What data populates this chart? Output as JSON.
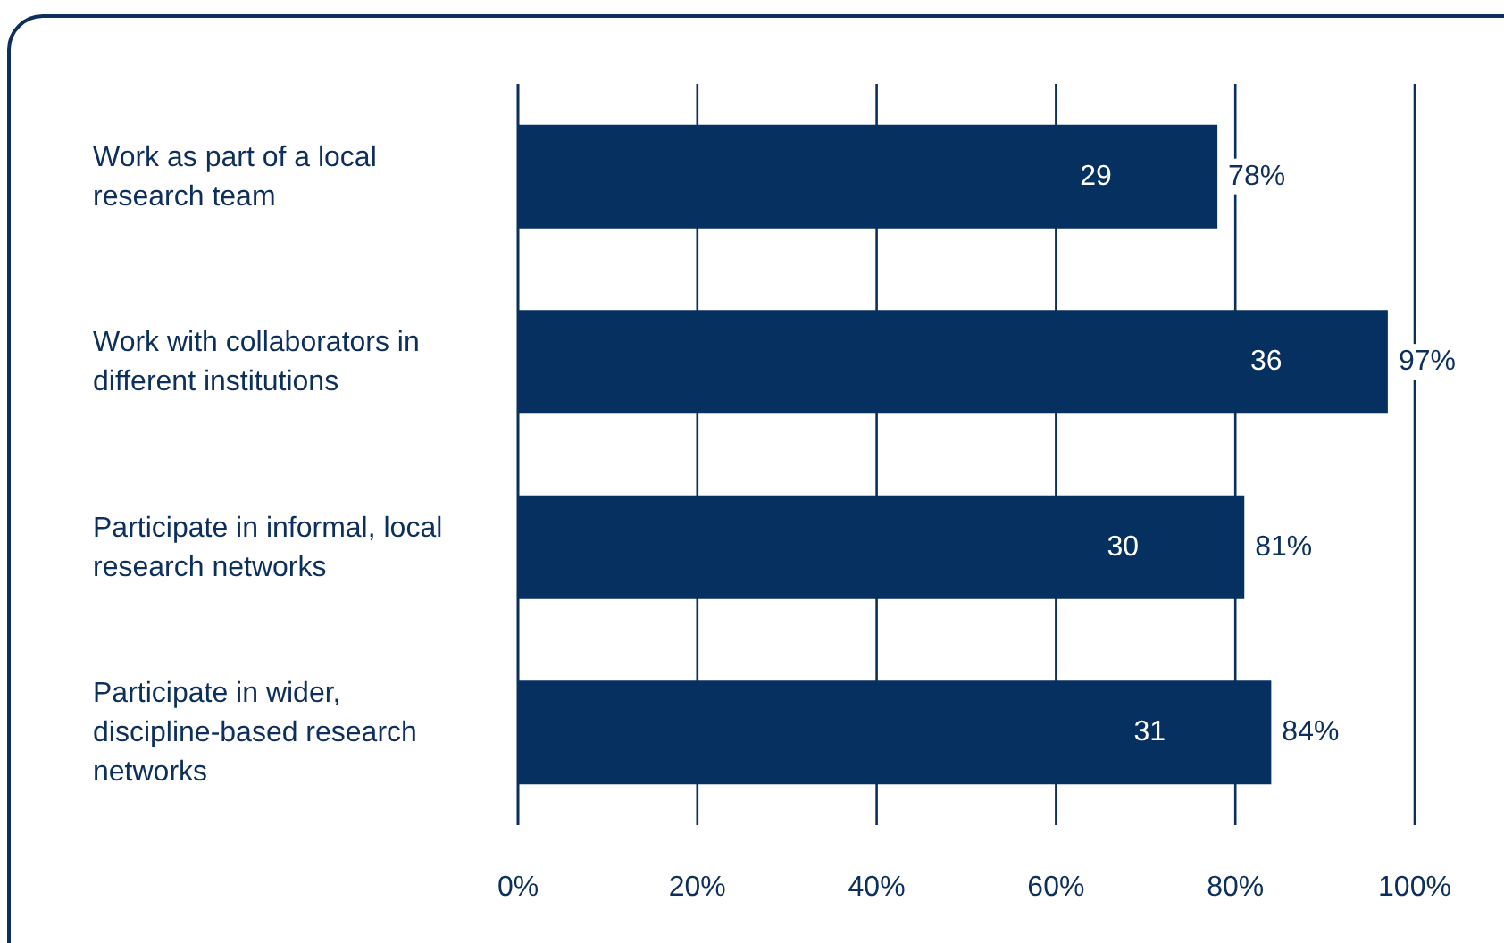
{
  "chart_data": {
    "type": "bar",
    "orientation": "horizontal",
    "categories": [
      "Work as part of a local research team",
      "Work with collaborators in different institutions",
      "Participate in informal, local research networks",
      "Participate in wider, discipline-based research networks"
    ],
    "values": [
      78,
      97,
      81,
      84
    ],
    "value_labels": [
      "78%",
      "97%",
      "81%",
      "84%"
    ],
    "color": "#05305f",
    "xlim": [
      0,
      100
    ],
    "xticks": [
      {
        "value": 0,
        "label": "0%"
      },
      {
        "value": 20,
        "label": "20%"
      },
      {
        "value": 40,
        "label": "40%"
      },
      {
        "value": 60,
        "label": "60%"
      },
      {
        "value": 80,
        "label": "80%"
      },
      {
        "value": 100,
        "label": "100%"
      }
    ],
    "grid": "x",
    "annotations": [
      "29",
      "36",
      "30",
      "31"
    ]
  }
}
